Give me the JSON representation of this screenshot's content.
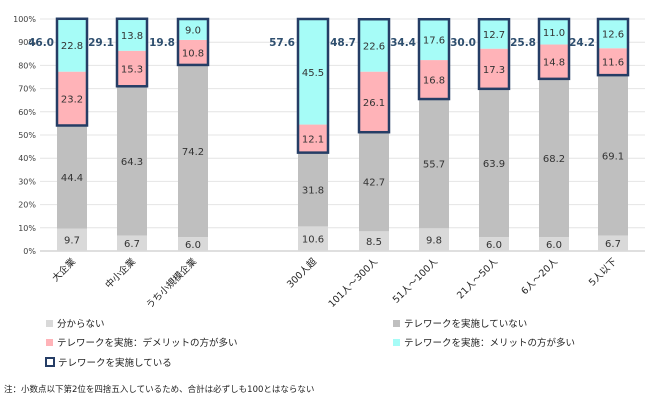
{
  "chart_data": {
    "type": "bar",
    "stacked": true,
    "categories": [
      "大企業",
      "中小企業",
      "うち小規模企業",
      "300人超",
      "101人～300人",
      "51人～100人",
      "21人～50人",
      "6人～20人",
      "5人以下"
    ],
    "series": [
      {
        "name": "分からない",
        "color": "#d9d9d9",
        "values": [
          9.7,
          6.7,
          6.0,
          10.6,
          8.5,
          9.8,
          6.0,
          6.0,
          6.7
        ]
      },
      {
        "name": "テレワークを実施していない",
        "color": "#bfbfbf",
        "values": [
          44.4,
          64.3,
          74.2,
          31.8,
          42.7,
          55.7,
          63.9,
          68.2,
          69.1
        ]
      },
      {
        "name": "テレワークを実施：デメリットの方が多い",
        "color": "#ffb3b8",
        "values": [
          23.2,
          15.3,
          10.8,
          12.1,
          26.1,
          16.8,
          17.3,
          14.8,
          11.6
        ]
      },
      {
        "name": "テレワークを実施：メリットの方が多い",
        "color": "#a6fcf7",
        "values": [
          22.8,
          13.8,
          9.0,
          45.5,
          22.6,
          17.6,
          12.7,
          11.0,
          12.6
        ]
      }
    ],
    "totals": {
      "name": "テレワークを実施している",
      "values": [
        "46.0",
        "29.1",
        "19.8",
        "57.6",
        "48.7",
        "34.4",
        "30.0",
        "25.8",
        "24.2"
      ],
      "color": "#253d65"
    },
    "yticks": [
      "0%",
      "10%",
      "20%",
      "30%",
      "40%",
      "50%",
      "60%",
      "70%",
      "80%",
      "90%",
      "100%"
    ],
    "ylim": [
      0,
      100
    ],
    "legend_position": "bottom",
    "note": "注：小数点以下第2位を四捨五入しているため、合計は必ずしも100とはならない"
  }
}
